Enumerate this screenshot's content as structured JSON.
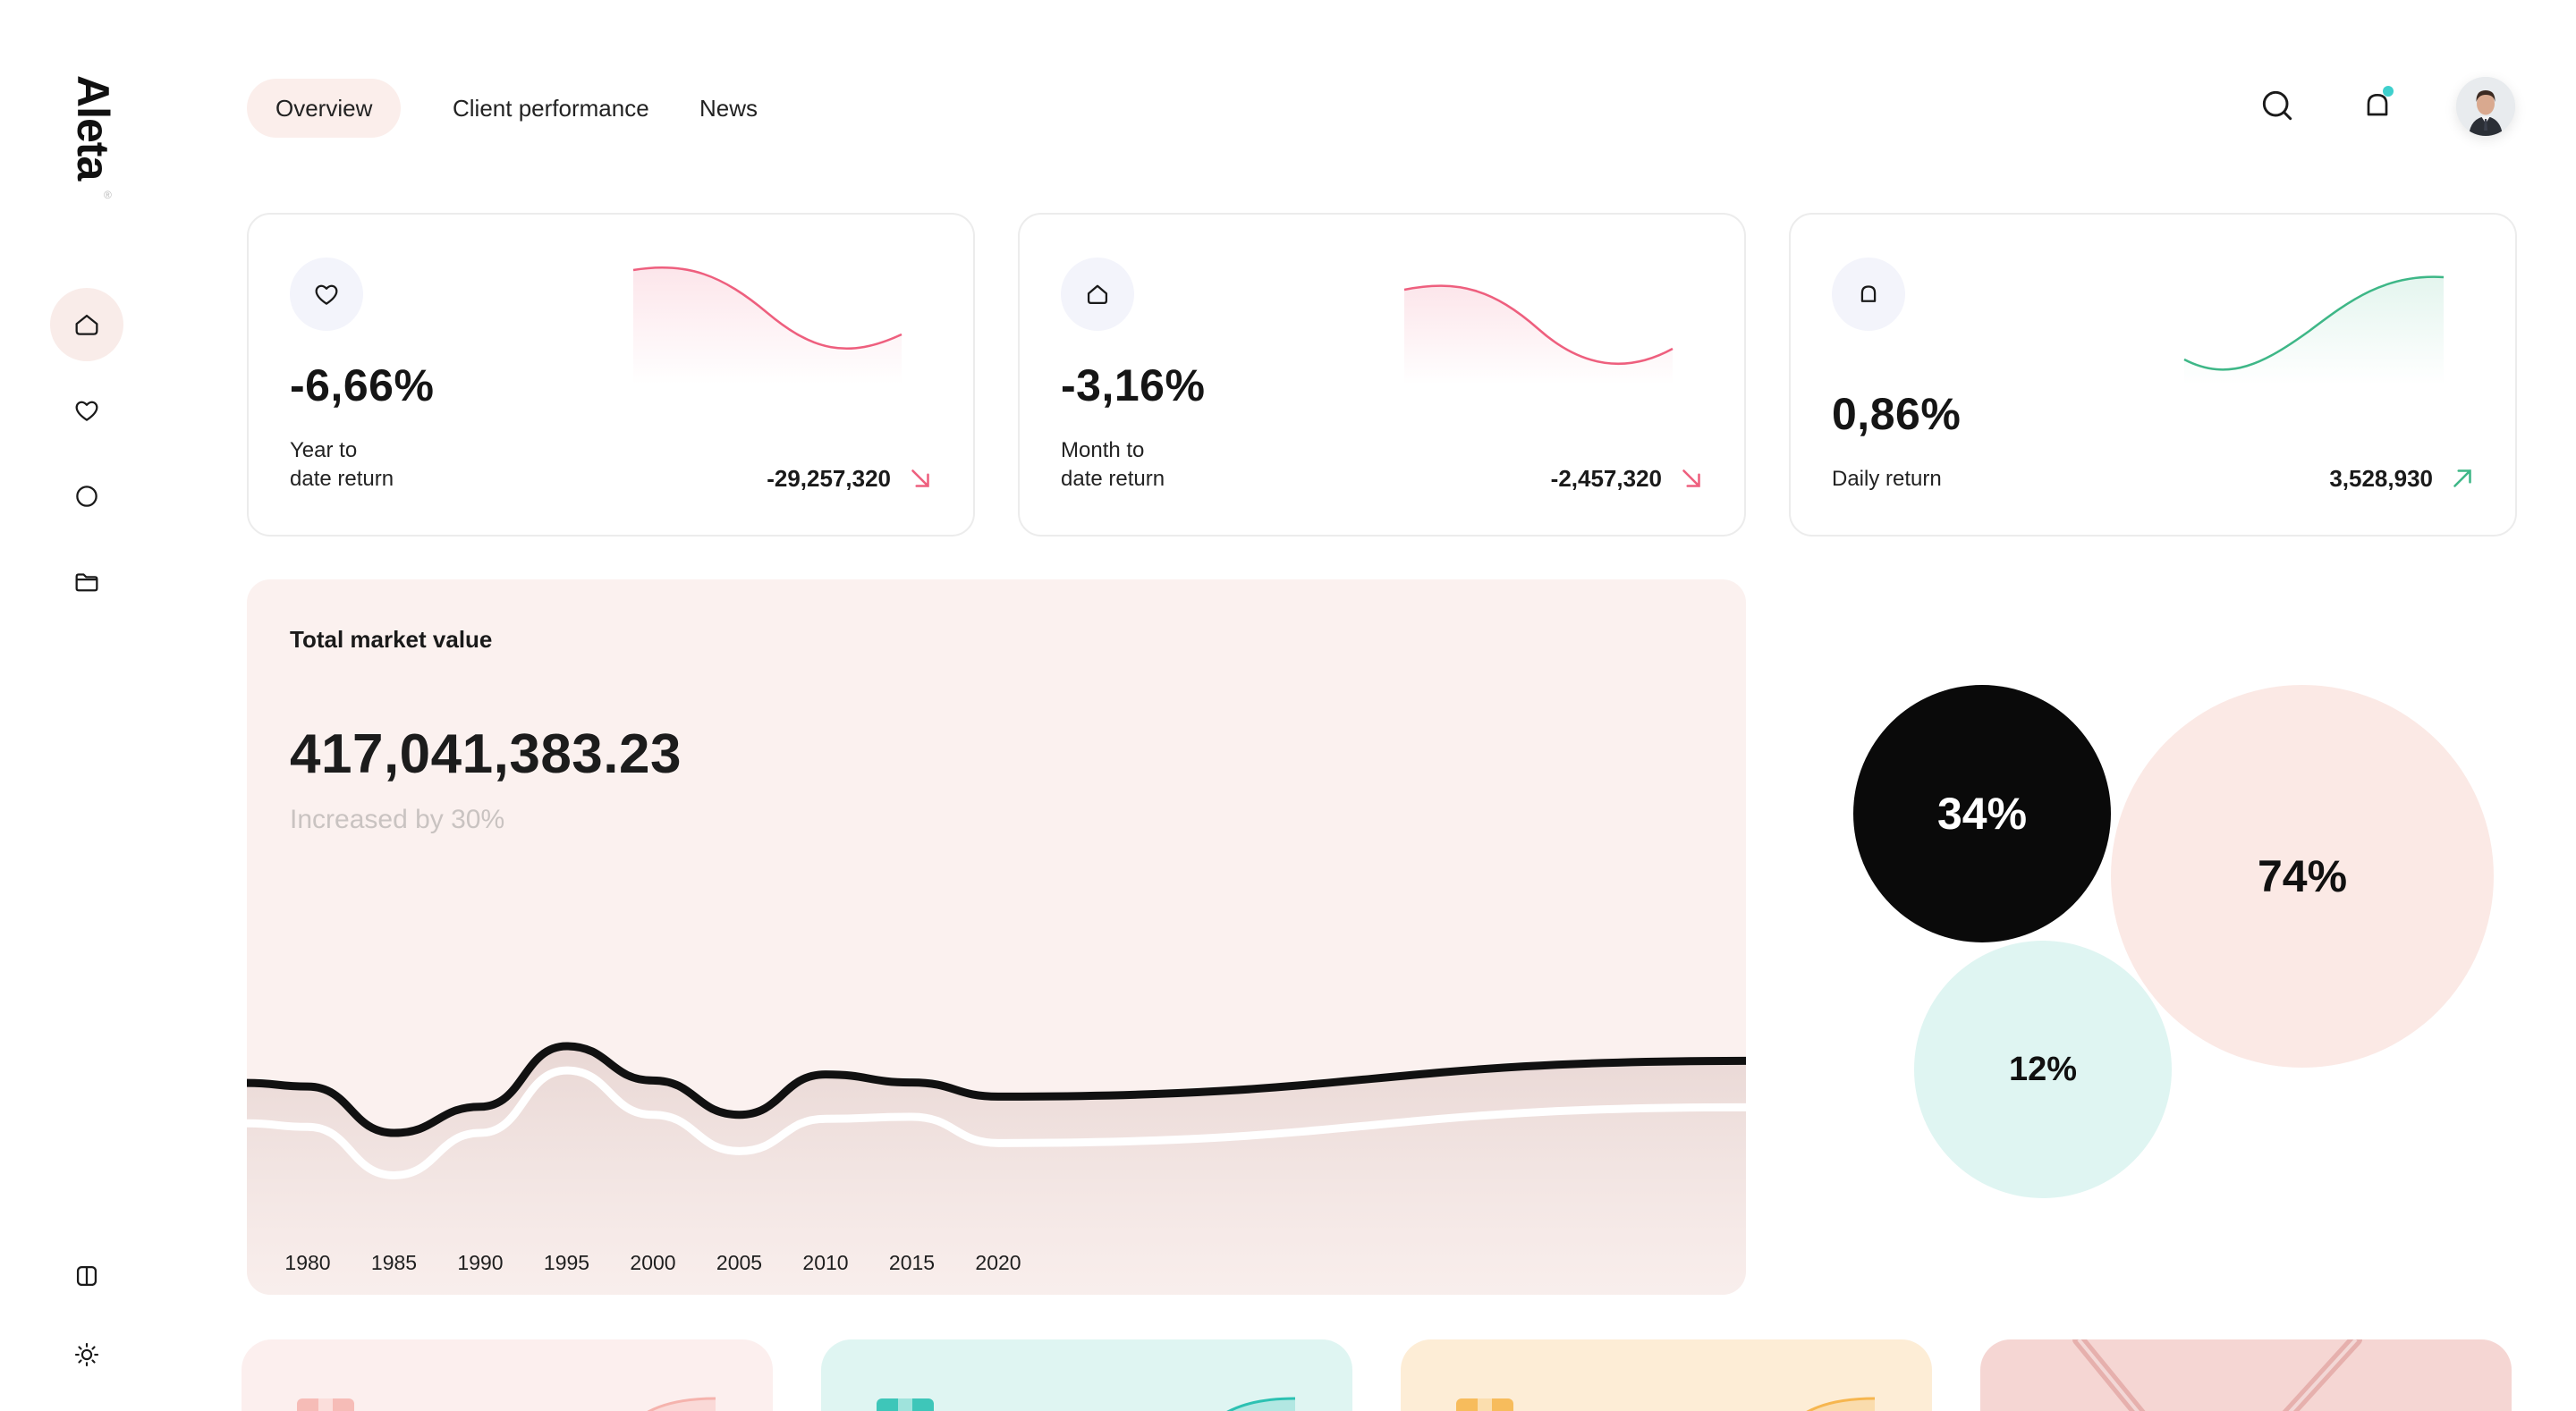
{
  "brand": {
    "name": "Aleta",
    "mark": "®"
  },
  "nav": {
    "tabs": [
      {
        "label": "Overview",
        "active": true
      },
      {
        "label": "Client performance",
        "active": false
      },
      {
        "label": "News",
        "active": false
      }
    ]
  },
  "header": {
    "icons": [
      "search-icon",
      "bell-icon",
      "avatar"
    ],
    "notification_dot_color": "#3fd0cd"
  },
  "sidebar": {
    "icons": [
      "home-icon",
      "heart-icon",
      "circle-icon",
      "folder-icon"
    ],
    "bottom_icons": [
      "layout-toggle-icon",
      "sun-icon"
    ]
  },
  "cards": [
    {
      "value": "-6,66%",
      "label": "Year to\ndate return",
      "amount": "-29,257,320",
      "trend": "down",
      "icon": "heart-icon",
      "color": "#ee5f7e"
    },
    {
      "value": "-3,16%",
      "label": "Month to\ndate return",
      "amount": "-2,457,320",
      "trend": "down",
      "icon": "home-icon",
      "color": "#ee5f7e"
    },
    {
      "value": "0,86%",
      "label": "Daily return",
      "amount": "3,528,930",
      "trend": "up",
      "icon": "bell-icon",
      "color": "#3eb787"
    }
  ],
  "market": {
    "title": "Total market value",
    "value": "417,041,383.23",
    "subtitle": "Increased by 30%"
  },
  "chart_data": {
    "type": "area",
    "title": "Total market value",
    "x": [
      1980,
      1985,
      1990,
      1995,
      2000,
      2005,
      2010,
      2015,
      2020
    ],
    "tick_labels": [
      "1980",
      "1985",
      "1990",
      "1995",
      "2000",
      "2005",
      "2010",
      "2015",
      "2020"
    ],
    "series": [
      {
        "values": [
          0.8,
          0.57,
          0.7,
          1.0,
          0.83,
          0.66,
          0.86,
          0.82,
          0.75
        ],
        "color": "#111111"
      },
      {
        "values": [
          0.6,
          0.36,
          0.57,
          0.88,
          0.66,
          0.48,
          0.64,
          0.65,
          0.52
        ],
        "color": "#ffffff"
      }
    ],
    "grid": false,
    "legend": "none"
  },
  "bubbles": [
    {
      "label": "34%",
      "value": 34,
      "color": "#0a0a0a",
      "text_color": "#ffffff"
    },
    {
      "label": "74%",
      "value": 74,
      "color": "#fbe9e5",
      "text_color": "#111111"
    },
    {
      "label": "12%",
      "value": 12,
      "color": "#dff5f2",
      "text_color": "#111111"
    }
  ],
  "bottom_cards": [
    {
      "color": "#fcefee",
      "accent": "#f5b3ad"
    },
    {
      "color": "#dff5f2",
      "accent": "#2cc1b2"
    },
    {
      "color": "#fdedd6",
      "accent": "#f6b64f"
    },
    {
      "color": "#f5d6d3",
      "accent": "#e6b0ad"
    }
  ]
}
